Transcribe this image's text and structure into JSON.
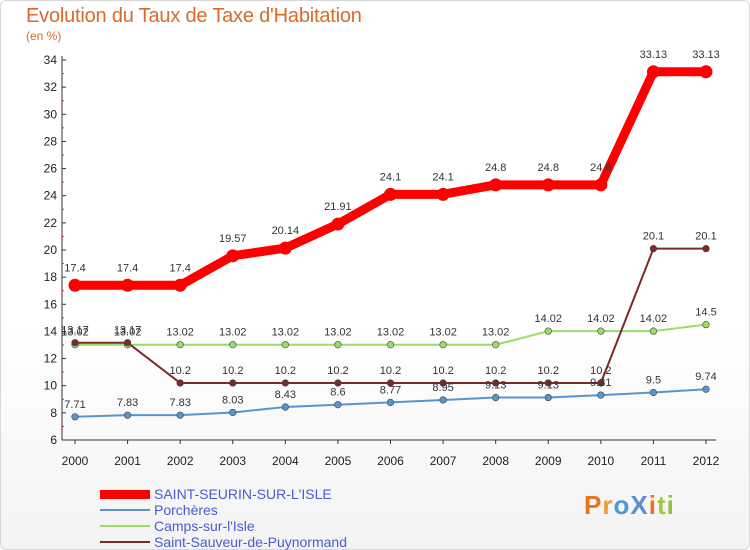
{
  "header": {
    "title": "Evolution du Taux de Taxe d'Habitation",
    "unit": "(en %)"
  },
  "chart_data": {
    "type": "line",
    "x": [
      "2000",
      "2001",
      "2002",
      "2003",
      "2004",
      "2005",
      "2006",
      "2007",
      "2008",
      "2009",
      "2010",
      "2011",
      "2012"
    ],
    "ylim": [
      6,
      34
    ],
    "yticks": [
      6,
      8,
      10,
      12,
      14,
      16,
      18,
      20,
      22,
      24,
      26,
      28,
      30,
      32,
      34
    ],
    "grid": false,
    "legend_placement": "bottom-left",
    "series": [
      {
        "name": "SAINT-SEURIN-SUR-L'ISLE",
        "color": "#ff0000",
        "values": [
          17.4,
          17.4,
          17.4,
          19.57,
          20.14,
          21.91,
          24.1,
          24.1,
          24.8,
          24.8,
          24.8,
          33.13,
          33.13
        ],
        "labels": [
          "17.4",
          "17.4",
          "17.4",
          "19.57",
          "20.14",
          "21.91",
          "24.1",
          "24.1",
          "24.8",
          "24.8",
          "24.8",
          "33.13",
          "33.13"
        ]
      },
      {
        "name": "Porchères",
        "color": "#5596d2",
        "values": [
          7.71,
          7.83,
          7.83,
          8.03,
          8.43,
          8.6,
          8.77,
          8.95,
          9.13,
          9.13,
          9.31,
          9.5,
          9.74
        ],
        "labels": [
          "7.71",
          "7.83",
          "7.83",
          "8.03",
          "8.43",
          "8.6",
          "8.77",
          "8.95",
          "9.13",
          "9.13",
          "9.31",
          "9.5",
          "9.74"
        ]
      },
      {
        "name": "Camps-sur-l'Isle",
        "color": "#99dd66",
        "values": [
          13.02,
          13.02,
          13.02,
          13.02,
          13.02,
          13.02,
          13.02,
          13.02,
          13.02,
          14.02,
          14.02,
          14.02,
          14.5
        ],
        "labels": [
          "13.02",
          "13.02",
          "13.02",
          "13.02",
          "13.02",
          "13.02",
          "13.02",
          "13.02",
          "13.02",
          "14.02",
          "14.02",
          "14.02",
          "14.5"
        ]
      },
      {
        "name": "Saint-Sauveur-de-Puynormand",
        "color": "#7a2a2a",
        "values": [
          13.17,
          13.17,
          10.2,
          10.2,
          10.2,
          10.2,
          10.2,
          10.2,
          10.2,
          10.2,
          10.2,
          20.1,
          20.1
        ],
        "labels": [
          "13.17",
          "13.17",
          "10.2",
          "10.2",
          "10.2",
          "10.2",
          "10.2",
          "10.2",
          "10.2",
          "10.2",
          "10.2",
          "20.1",
          "20.1"
        ]
      }
    ]
  },
  "logo": {
    "text": "ProXiti",
    "colors": [
      "#e8741e",
      "#f29a2e",
      "#4a9ad8",
      "#5a8fd6",
      "#e8741e",
      "#9ccc3c",
      "#8fc43a"
    ]
  }
}
